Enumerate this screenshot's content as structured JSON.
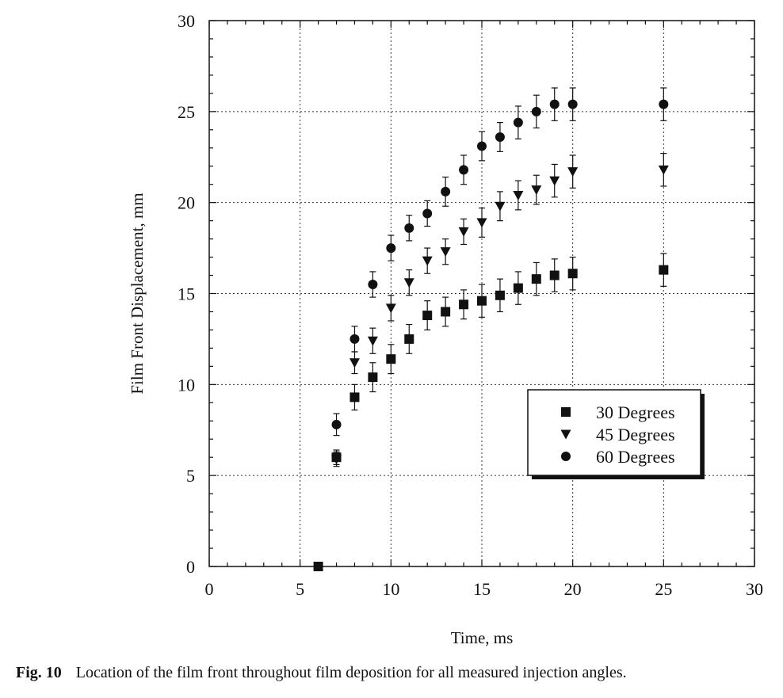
{
  "chart_data": {
    "type": "scatter",
    "title": "",
    "xlabel": "Time, ms",
    "ylabel": "Film Front Displacement, mm",
    "xlim": [
      0,
      30
    ],
    "ylim": [
      0,
      30
    ],
    "xticks": [
      0,
      5,
      10,
      15,
      20,
      25,
      30
    ],
    "yticks": [
      0,
      5,
      10,
      15,
      20,
      25,
      30
    ],
    "grid": true,
    "legend_position": "center-right",
    "series": [
      {
        "name": "30 Degrees",
        "marker": "square",
        "x": [
          6,
          7,
          8,
          9,
          10,
          11,
          12,
          13,
          14,
          15,
          16,
          17,
          18,
          19,
          20,
          25
        ],
        "y": [
          0,
          6.0,
          9.3,
          10.4,
          11.4,
          12.5,
          13.8,
          14.0,
          14.4,
          14.6,
          14.9,
          15.3,
          15.8,
          16.0,
          16.1,
          16.3
        ],
        "err": [
          0,
          0.4,
          0.7,
          0.8,
          0.8,
          0.8,
          0.8,
          0.8,
          0.8,
          0.9,
          0.9,
          0.9,
          0.9,
          0.9,
          0.9,
          0.9
        ]
      },
      {
        "name": "45 Degrees",
        "marker": "triangle-down",
        "x": [
          7,
          8,
          9,
          10,
          11,
          12,
          13,
          14,
          15,
          16,
          17,
          18,
          19,
          20,
          25
        ],
        "y": [
          5.9,
          11.2,
          12.4,
          14.2,
          15.6,
          16.8,
          17.3,
          18.4,
          18.9,
          19.8,
          20.4,
          20.7,
          21.2,
          21.7,
          21.8
        ],
        "err": [
          0.4,
          0.6,
          0.7,
          0.7,
          0.7,
          0.7,
          0.7,
          0.7,
          0.8,
          0.8,
          0.8,
          0.8,
          0.9,
          0.9,
          0.9
        ]
      },
      {
        "name": "60 Degrees",
        "marker": "circle",
        "x": [
          7,
          8,
          9,
          10,
          11,
          12,
          13,
          14,
          15,
          16,
          17,
          18,
          19,
          20,
          25
        ],
        "y": [
          7.8,
          12.5,
          15.5,
          17.5,
          18.6,
          19.4,
          20.6,
          21.8,
          23.1,
          23.6,
          24.4,
          25.0,
          25.4,
          25.4,
          25.4
        ],
        "err": [
          0.6,
          0.7,
          0.7,
          0.7,
          0.7,
          0.7,
          0.8,
          0.8,
          0.8,
          0.8,
          0.9,
          0.9,
          0.9,
          0.9,
          0.9
        ]
      }
    ]
  },
  "caption": {
    "figure_number": "Fig. 10",
    "text": "Location of the film front throughout film deposition for all measured injection angles."
  }
}
